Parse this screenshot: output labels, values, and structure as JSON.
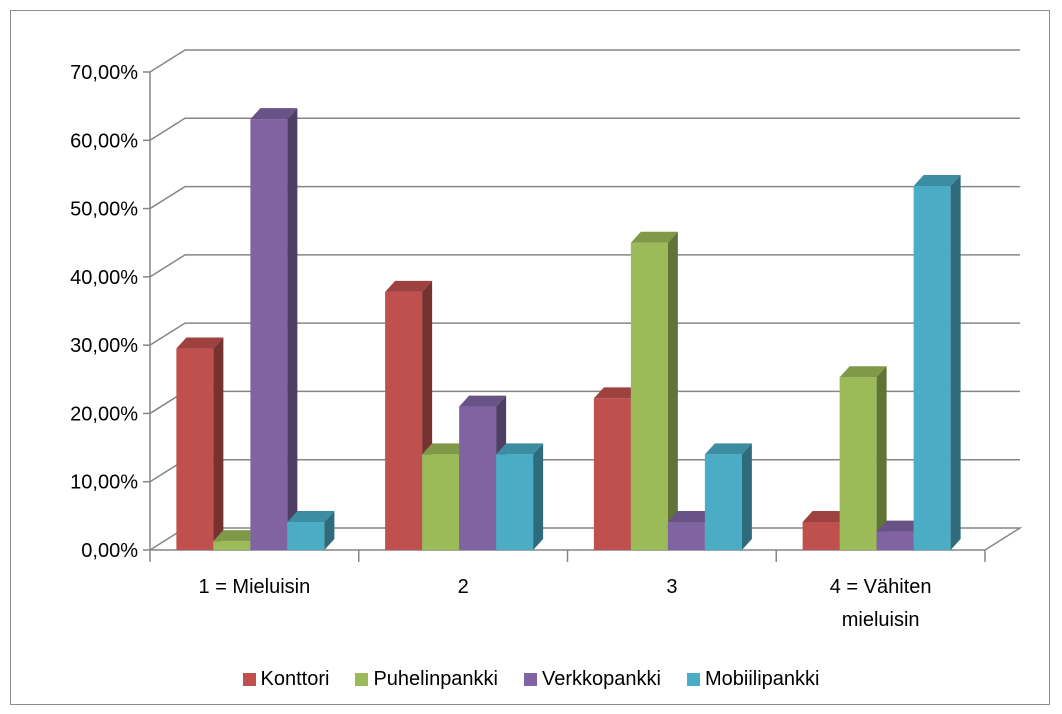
{
  "chart_data": {
    "type": "bar",
    "title": "",
    "xlabel": "",
    "ylabel": "",
    "ylim": [
      0,
      0.7
    ],
    "y_ticks": [
      "0,00%",
      "10,00%",
      "20,00%",
      "30,00%",
      "40,00%",
      "50,00%",
      "60,00%",
      "70,00%"
    ],
    "categories": [
      [
        "1 = Mieluisin"
      ],
      [
        "2"
      ],
      [
        "3"
      ],
      [
        "4 = Vähiten",
        "mieluisin"
      ]
    ],
    "series": [
      {
        "name": "Konttori",
        "color": "#c0504d",
        "values": [
          0.295,
          0.378,
          0.222,
          0.041
        ]
      },
      {
        "name": "Puhelinpankki",
        "color": "#9bbb59",
        "values": [
          0.013,
          0.14,
          0.45,
          0.253
        ]
      },
      {
        "name": "Verkkopankki",
        "color": "#8064a2",
        "values": [
          0.631,
          0.21,
          0.041,
          0.027
        ]
      },
      {
        "name": "Mobiilipankki",
        "color": "#4bacc6",
        "values": [
          0.041,
          0.14,
          0.14,
          0.533
        ]
      }
    ],
    "style": "3d-clustered-column",
    "grid": true,
    "legend_position": "bottom"
  }
}
